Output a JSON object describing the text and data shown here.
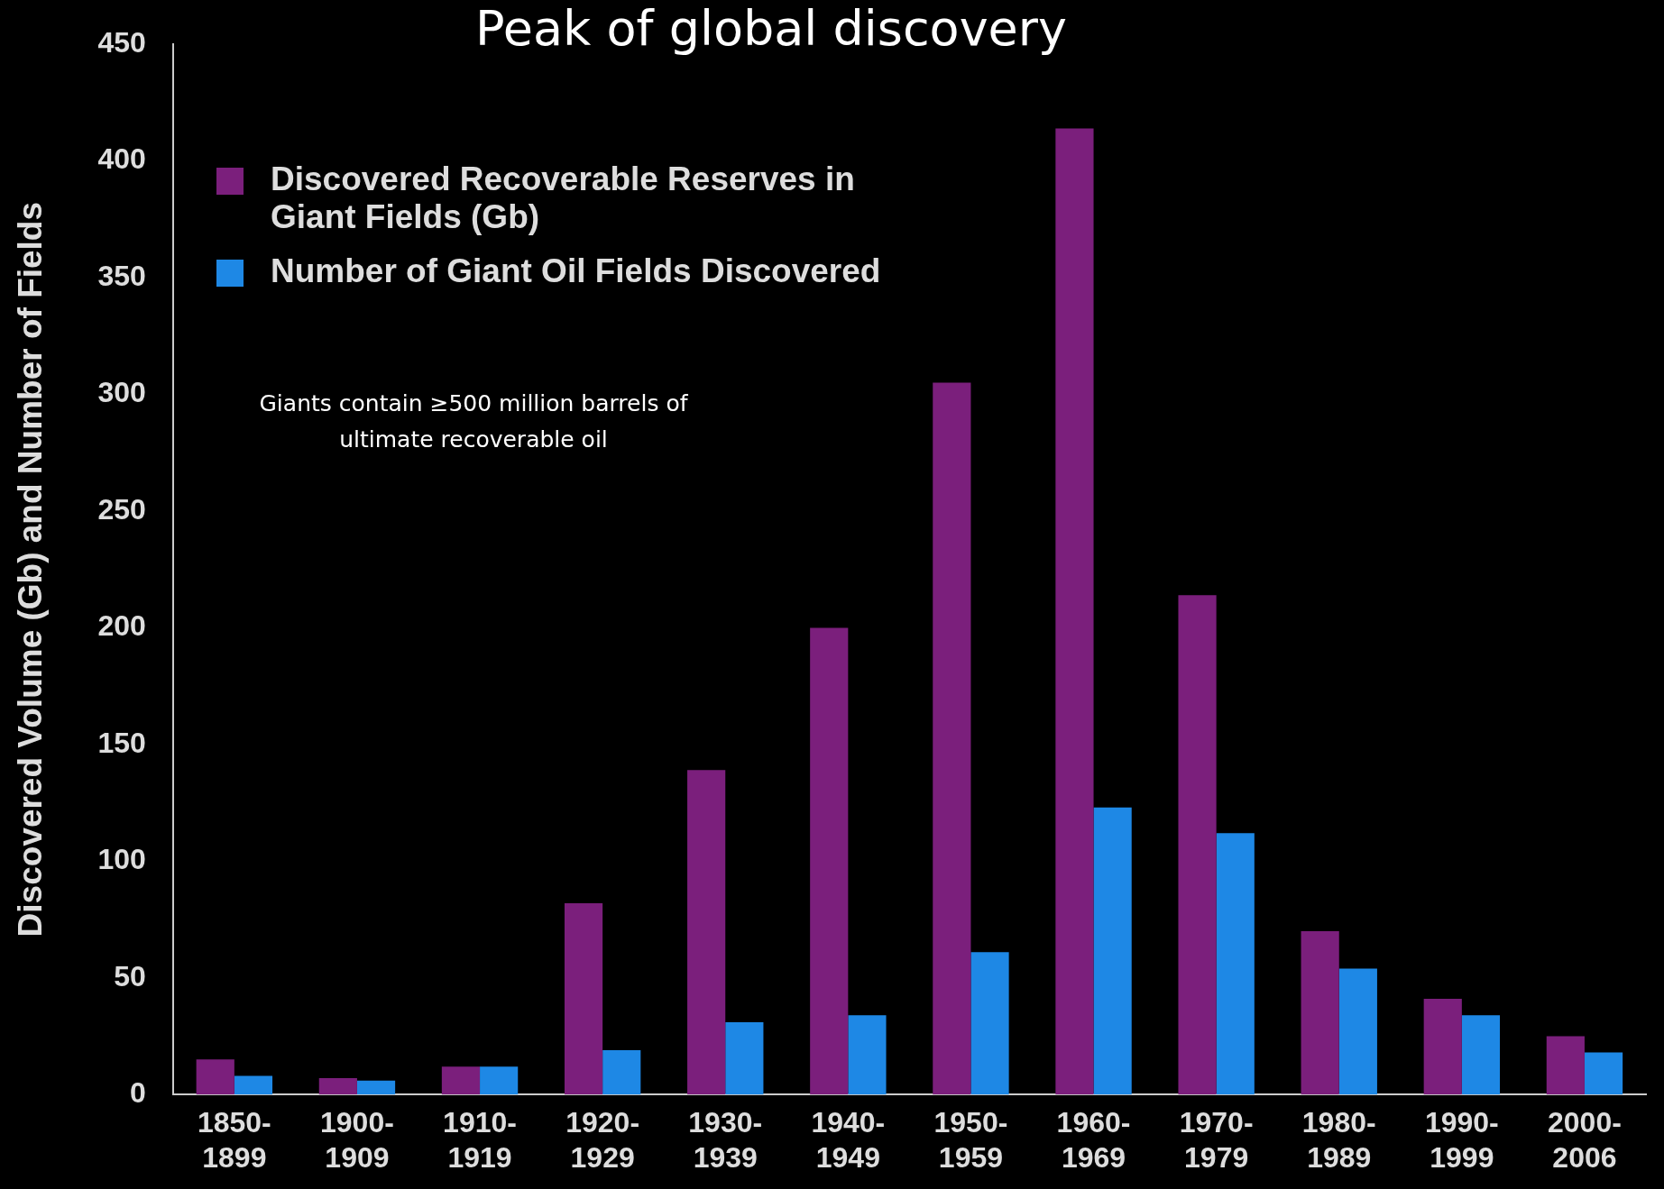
{
  "chart_data": {
    "type": "bar",
    "title": "Peak of global discovery",
    "ylabel": "Discovered Volume (Gb) and Number of Fields",
    "categories": [
      "1850-1899",
      "1900-1909",
      "1910-1919",
      "1920-1929",
      "1930-1939",
      "1940-1949",
      "1950-1959",
      "1960-1969",
      "1970-1979",
      "1980-1989",
      "1990-1999",
      "2000-2006"
    ],
    "series": [
      {
        "name": "Discovered Recoverable Reserves in Giant Fields (Gb)",
        "color": "#7b1f7c",
        "values": [
          15,
          7,
          12,
          82,
          139,
          200,
          305,
          414,
          214,
          70,
          41,
          25
        ]
      },
      {
        "name": "Number of Giant Oil Fields Discovered",
        "color": "#1e88e5",
        "values": [
          8,
          6,
          12,
          19,
          31,
          34,
          61,
          123,
          112,
          54,
          34,
          18
        ]
      }
    ],
    "ylim": [
      0,
      450
    ],
    "yticks": [
      0,
      50,
      100,
      150,
      200,
      250,
      300,
      350,
      400,
      450
    ],
    "grid": false,
    "legend": "top left",
    "annotations": [
      "Giants contain ≥500 million barrels of ultimate recoverable oil"
    ]
  }
}
